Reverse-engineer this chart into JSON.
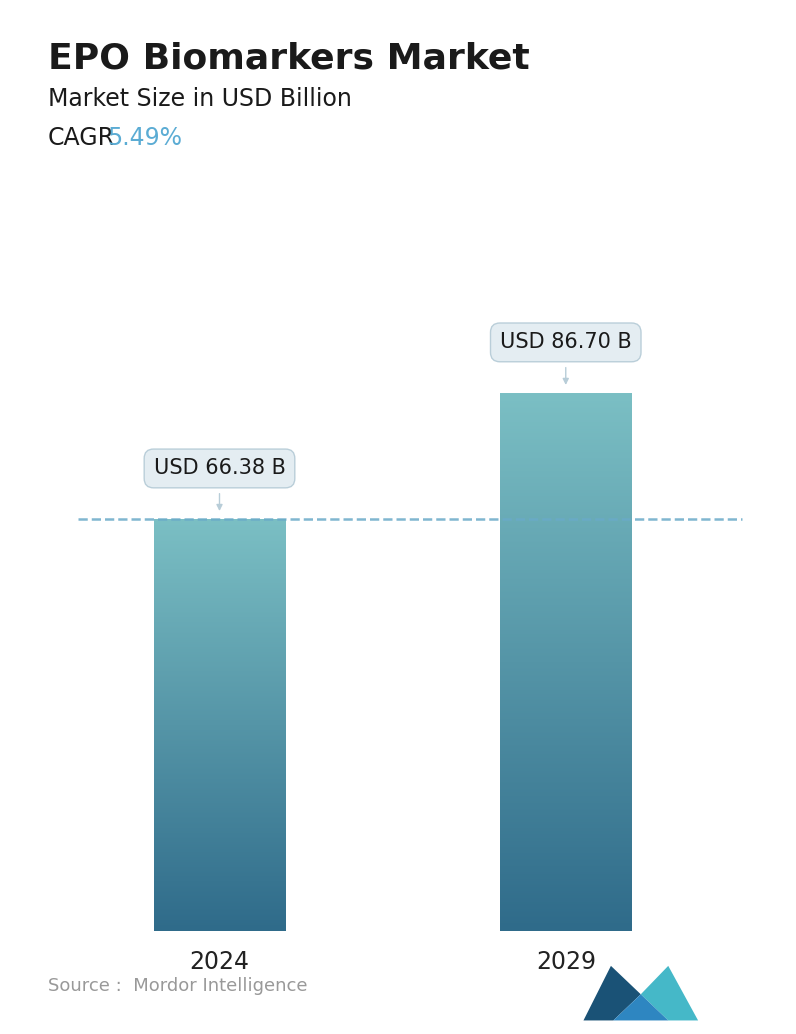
{
  "title": "EPO Biomarkers Market",
  "subtitle": "Market Size in USD Billion",
  "cagr_label": "CAGR",
  "cagr_value": "5.49%",
  "cagr_color": "#5BACD4",
  "categories": [
    "2024",
    "2029"
  ],
  "values": [
    66.38,
    86.7
  ],
  "labels": [
    "USD 66.38 B",
    "USD 86.70 B"
  ],
  "bar_top_color": "#7BBFC4",
  "bar_bottom_color": "#2F6B8A",
  "dashed_line_color": "#6AAAC8",
  "dashed_line_value": 66.38,
  "source_text": "Source :  Mordor Intelligence",
  "source_color": "#999999",
  "background_color": "#FFFFFF",
  "title_fontsize": 26,
  "subtitle_fontsize": 17,
  "cagr_fontsize": 17,
  "label_fontsize": 15,
  "tick_fontsize": 17,
  "source_fontsize": 13,
  "ylim": [
    0,
    100
  ],
  "bar_width": 0.38,
  "x_positions": [
    1,
    2
  ],
  "xlim": [
    0.55,
    2.55
  ]
}
